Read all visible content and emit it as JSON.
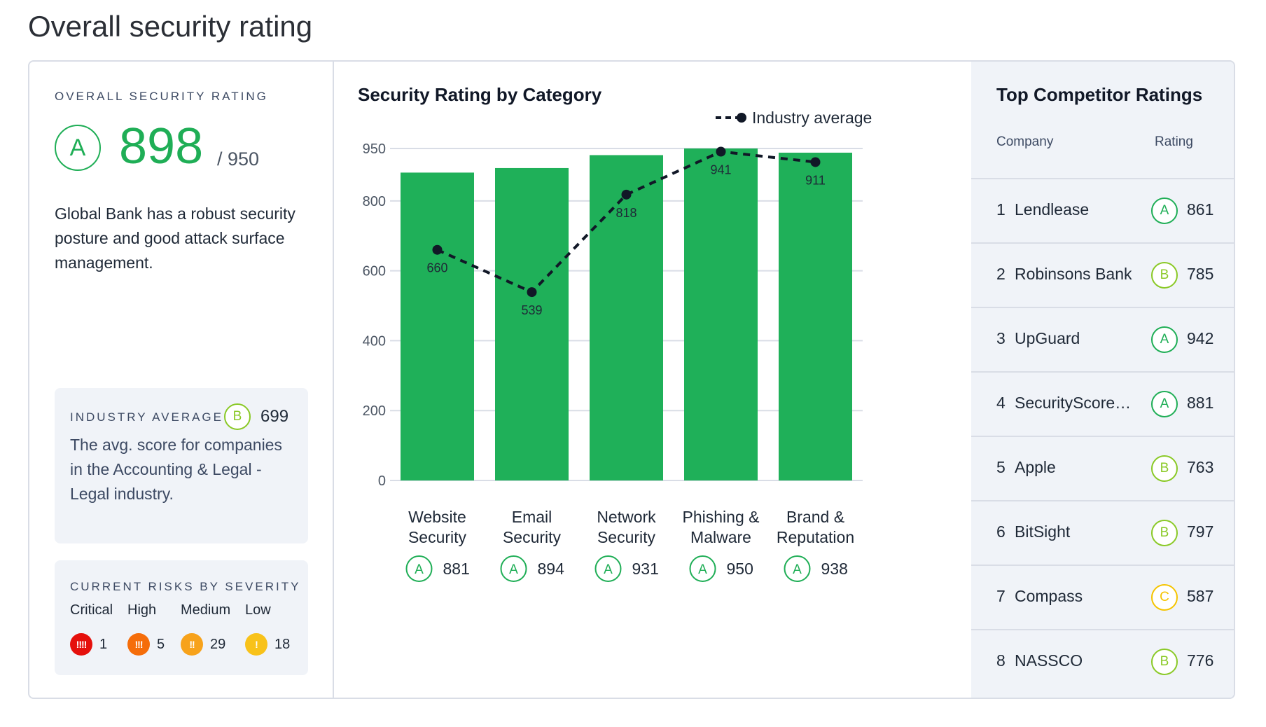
{
  "page": {
    "title": "Overall security rating"
  },
  "overall": {
    "label": "OVERALL SECURITY RATING",
    "grade": "A",
    "score": "898",
    "max": "/ 950",
    "description": "Global Bank has a robust security posture and good attack surface management."
  },
  "industry": {
    "label": "INDUSTRY AVERAGE",
    "grade": "B",
    "score": "699",
    "text": "The avg. score for companies in the Accounting & Legal - Legal industry."
  },
  "risks": {
    "label": "CURRENT RISKS BY SEVERITY",
    "severities": [
      {
        "name": "Critical",
        "icon": "!!!!",
        "count": "1",
        "color": "#e5100c"
      },
      {
        "name": "High",
        "icon": "!!!",
        "count": "5",
        "color": "#f56d0a"
      },
      {
        "name": "Medium",
        "icon": "!!",
        "count": "29",
        "color": "#f7a21b"
      },
      {
        "name": "Low",
        "icon": "!",
        "count": "18",
        "color": "#f8c21a"
      }
    ]
  },
  "colors": {
    "grade_A": "#1fae56",
    "grade_B": "#8ac926",
    "grade_C": "#f5c400",
    "bar": "#1fb059"
  },
  "chart_data": {
    "type": "bar",
    "title": "Security Rating by Category",
    "categories": [
      "Website Security",
      "Email Security",
      "Network Security",
      "Phishing & Malware",
      "Brand & Reputation"
    ],
    "category_lines": [
      [
        "Website",
        "Security"
      ],
      [
        "Email",
        "Security"
      ],
      [
        "Network",
        "Security"
      ],
      [
        "Phishing &",
        "Malware"
      ],
      [
        "Brand &",
        "Reputation"
      ]
    ],
    "series": [
      {
        "values": [
          881,
          894,
          931,
          950,
          938
        ],
        "grades": [
          "A",
          "A",
          "A",
          "A",
          "A"
        ]
      },
      {
        "name": "Industry average",
        "type": "line",
        "style": "dashed",
        "values": [
          660,
          539,
          818,
          941,
          911
        ]
      }
    ],
    "yticks": [
      0,
      200,
      400,
      600,
      800,
      950
    ],
    "ylim": [
      0,
      950
    ],
    "grid": true,
    "legend": "top-right"
  },
  "competitors": {
    "title": "Top Competitor Ratings",
    "col_company": "Company",
    "col_rating": "Rating",
    "rows": [
      {
        "rank": "1",
        "name": "Lendlease",
        "grade": "A",
        "score": "861"
      },
      {
        "rank": "2",
        "name": "Robinsons Bank",
        "grade": "B",
        "score": "785"
      },
      {
        "rank": "3",
        "name": "UpGuard",
        "grade": "A",
        "score": "942"
      },
      {
        "rank": "4",
        "name": "SecurityScorecard",
        "grade": "A",
        "score": "881"
      },
      {
        "rank": "5",
        "name": "Apple",
        "grade": "B",
        "score": "763"
      },
      {
        "rank": "6",
        "name": "BitSight",
        "grade": "B",
        "score": "797"
      },
      {
        "rank": "7",
        "name": "Compass",
        "grade": "C",
        "score": "587"
      },
      {
        "rank": "8",
        "name": "NASSCO",
        "grade": "B",
        "score": "776"
      }
    ]
  }
}
